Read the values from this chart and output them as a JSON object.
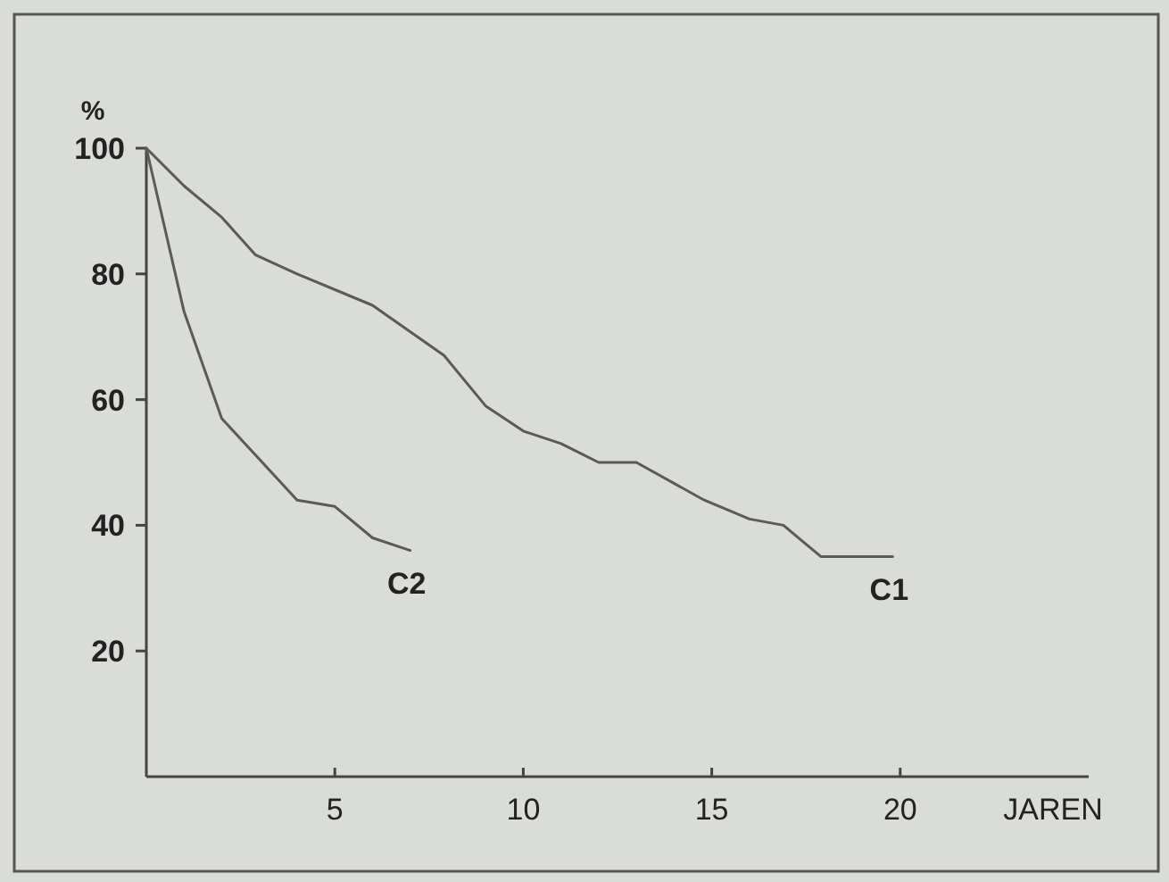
{
  "chart_data": {
    "type": "line",
    "xlabel": "JAREN",
    "ylabel": "%",
    "xlim": [
      0,
      25
    ],
    "ylim": [
      0,
      100
    ],
    "xticks": [
      5,
      10,
      15,
      20
    ],
    "yticks": [
      20,
      40,
      60,
      80,
      100
    ],
    "grid": false,
    "marker": "none",
    "line_style": "solid",
    "series": [
      {
        "name": "C1",
        "color": "#5a5a5a",
        "x": [
          0,
          1,
          2,
          2.9,
          4,
          6,
          7.9,
          9,
          10,
          11,
          12,
          13,
          14.8,
          16,
          16.9,
          17.9,
          19.8
        ],
        "values": [
          100,
          94,
          89,
          83,
          80,
          75,
          67,
          59,
          55,
          53,
          50,
          50,
          44,
          41,
          40,
          35,
          35
        ]
      },
      {
        "name": "C2",
        "color": "#5a5a5a",
        "x": [
          0,
          1,
          2,
          4,
          5,
          6,
          7
        ],
        "values": [
          100,
          74,
          57,
          44,
          43,
          38,
          36
        ]
      }
    ]
  }
}
